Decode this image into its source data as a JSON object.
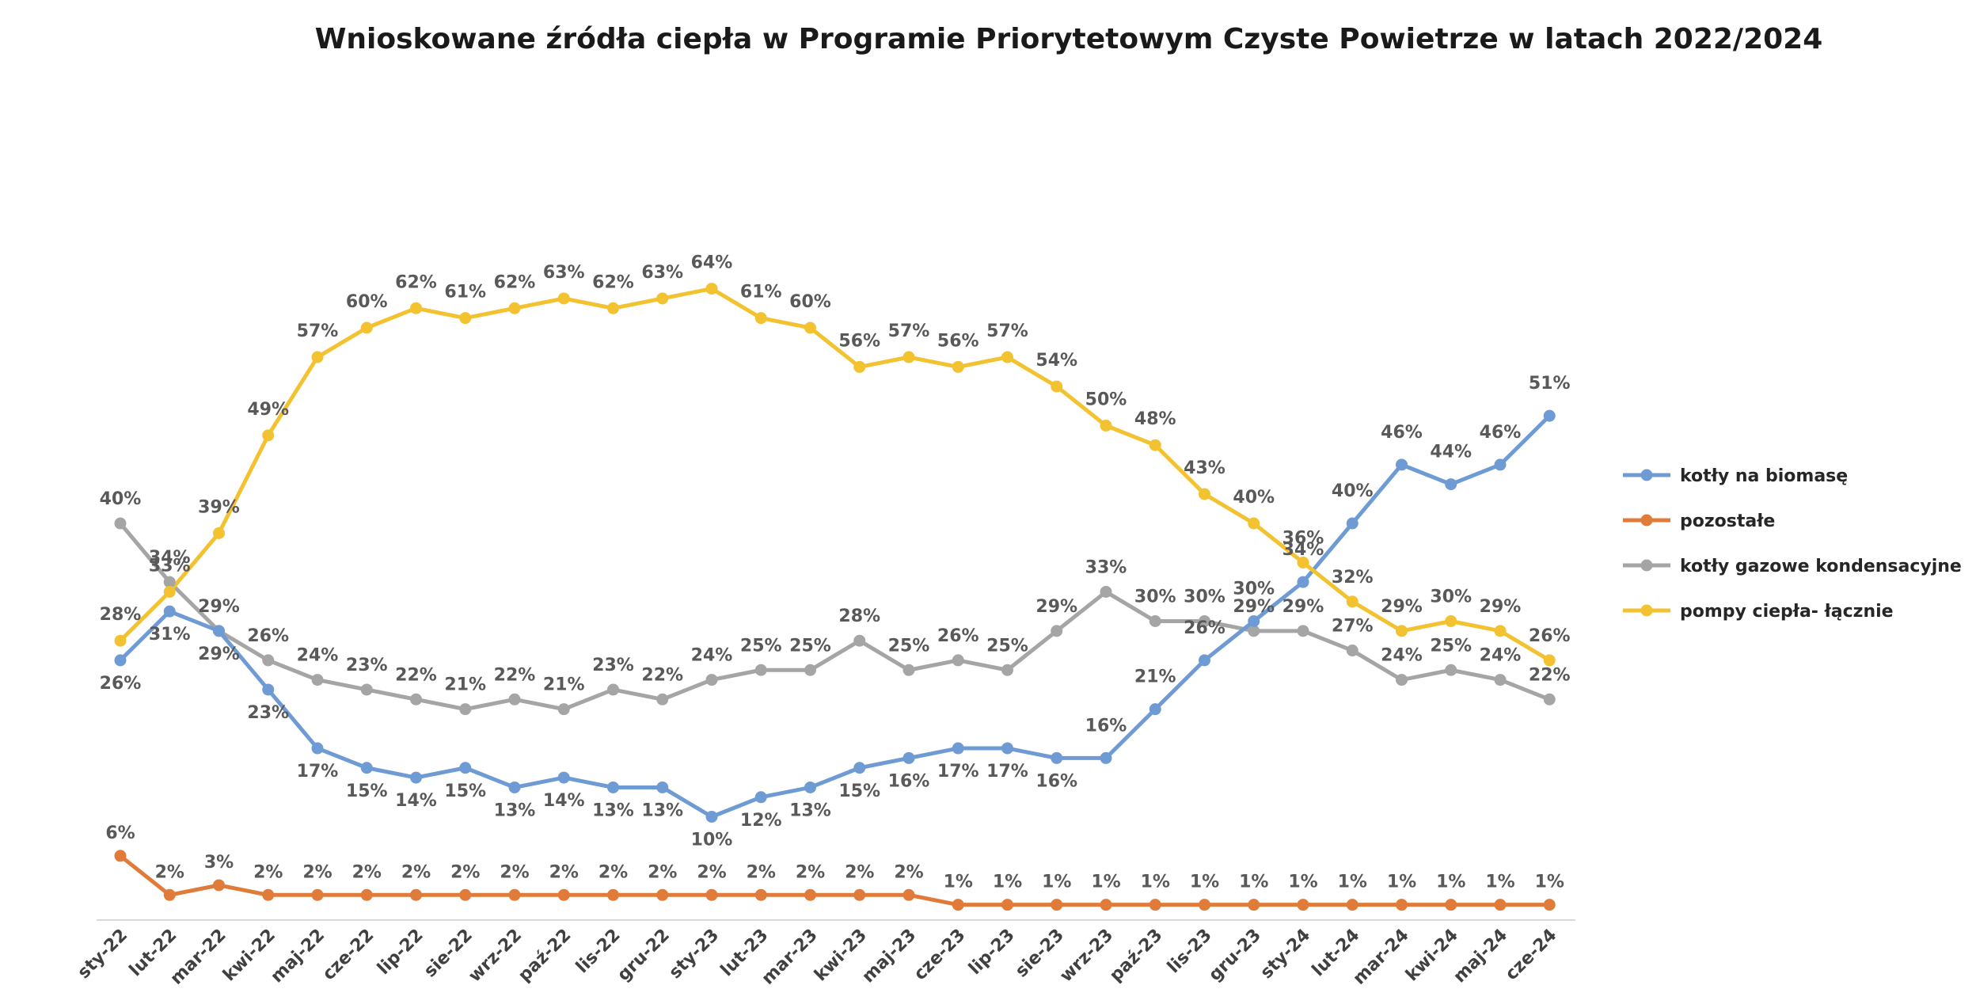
{
  "chart_data": {
    "type": "line",
    "title": "Wnioskowane źródła ciepła w Programie Priorytetowym Czyste Powietrze w latach 2022/2024",
    "xlabel": "",
    "ylabel": "",
    "ylim": [
      0,
      70
    ],
    "grid": false,
    "legend_position": "right",
    "value_suffix": "%",
    "categories": [
      "sty-22",
      "lut-22",
      "mar-22",
      "kwi-22",
      "maj-22",
      "cze-22",
      "lip-22",
      "sie-22",
      "wrz-22",
      "paź-22",
      "lis-22",
      "gru-22",
      "sty-23",
      "lut-23",
      "mar-23",
      "kwi-23",
      "maj-23",
      "cze-23",
      "lip-23",
      "sie-23",
      "wrz-23",
      "paź-23",
      "lis-23",
      "gru-23",
      "sty-24",
      "lut-24",
      "mar-24",
      "kwi-24",
      "maj-24",
      "cze-24"
    ],
    "series": [
      {
        "name": "kotły na biomasę",
        "color": "#6f9bd4",
        "values": [
          26,
          31,
          29,
          23,
          17,
          15,
          14,
          15,
          13,
          14,
          13,
          13,
          10,
          12,
          13,
          15,
          16,
          17,
          17,
          16,
          16,
          21,
          26,
          30,
          34,
          40,
          46,
          44,
          46,
          51
        ]
      },
      {
        "name": "pozostałe",
        "color": "#e07b39",
        "values": [
          6,
          2,
          3,
          2,
          2,
          2,
          2,
          2,
          2,
          2,
          2,
          2,
          2,
          2,
          2,
          2,
          2,
          1,
          1,
          1,
          1,
          1,
          1,
          1,
          1,
          1,
          1,
          1,
          1,
          1
        ]
      },
      {
        "name": "kotły gazowe kondensacyjne",
        "color": "#a5a5a5",
        "values": [
          40,
          34,
          29,
          26,
          24,
          23,
          22,
          21,
          22,
          21,
          23,
          22,
          24,
          25,
          25,
          28,
          25,
          26,
          25,
          29,
          33,
          30,
          30,
          29,
          29,
          27,
          24,
          25,
          24,
          22
        ]
      },
      {
        "name": "pompy ciepła- łącznie",
        "color": "#f2c231",
        "values": [
          28,
          33,
          39,
          49,
          57,
          60,
          62,
          61,
          62,
          63,
          62,
          63,
          64,
          61,
          60,
          56,
          57,
          56,
          57,
          54,
          50,
          48,
          43,
          40,
          36,
          32,
          29,
          30,
          29,
          26
        ]
      }
    ]
  }
}
